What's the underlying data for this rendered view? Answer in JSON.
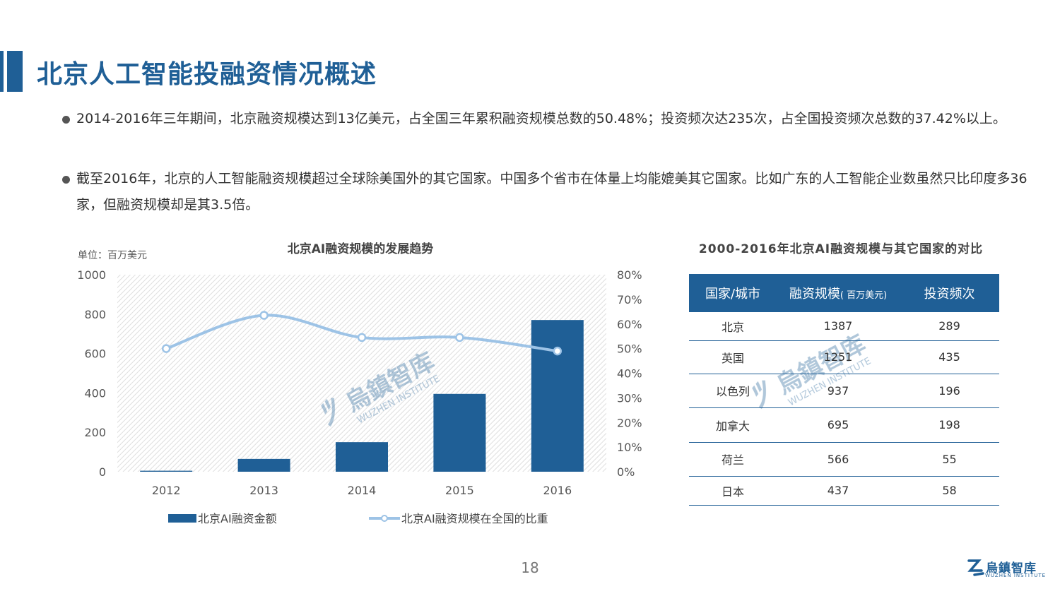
{
  "header": {
    "title": "北京人工智能投融资情况概述"
  },
  "bullets": [
    "2014-2016年三年期间，北京融资规模达到13亿美元，占全国三年累积融资规模总数的50.48%；投资频次达235次，占全国投资频次总数的37.42%以上。",
    "截至2016年，北京的人工智能融资规模超过全球除美国外的其它国家。中国多个省市在体量上均能媲美其它国家。比如广东的人工智能企业数虽然只比印度多36家，但融资规模却是其3.5倍。"
  ],
  "chart_data": {
    "type": "bar+line",
    "title": "北京AI融资规模的发展趋势",
    "unit_label": "单位：百万美元",
    "categories": [
      "2012",
      "2013",
      "2014",
      "2015",
      "2016"
    ],
    "y_left": {
      "lim": [
        0,
        1000
      ],
      "ticks": [
        "0",
        "200",
        "400",
        "600",
        "800",
        "1000"
      ]
    },
    "y_right": {
      "lim": [
        0,
        80
      ],
      "ticks": [
        "0%",
        "10%",
        "20%",
        "30%",
        "40%",
        "50%",
        "60%",
        "70%",
        "80%"
      ]
    },
    "series": [
      {
        "name": "北京AI融资金额",
        "type": "bar",
        "axis": "left",
        "values": [
          5,
          65,
          150,
          395,
          770
        ],
        "color": "#1f5f96"
      },
      {
        "name": "北京AI融资规模在全国的比重",
        "type": "line",
        "axis": "right",
        "values": [
          50,
          63.5,
          54.5,
          54.5,
          49
        ],
        "color": "#9dc3e6"
      }
    ],
    "grid": false,
    "legend": "bottom"
  },
  "table": {
    "title": "2000-2016年北京AI融资规模与其它国家的对比",
    "headers": [
      "国家/城市",
      "融资规模",
      "( 百万美元)",
      "投资频次"
    ],
    "rows": [
      [
        "北京",
        "1387",
        "289"
      ],
      [
        "英国",
        "1251",
        "435"
      ],
      [
        "以色列",
        "937",
        "196"
      ],
      [
        "加拿大",
        "695",
        "198"
      ],
      [
        "荷兰",
        "566",
        "55"
      ],
      [
        "日本",
        "437",
        "58"
      ]
    ]
  },
  "watermark": {
    "text": "烏鎮智库",
    "sub": "WUZHEN INSTITUTE"
  },
  "footer": {
    "page": "18",
    "logo_text": "烏鎮智库",
    "logo_sub": "WUZHEN INSTITUTE"
  },
  "colors": {
    "primary": "#1f5f96",
    "line": "#9dc3e6"
  }
}
